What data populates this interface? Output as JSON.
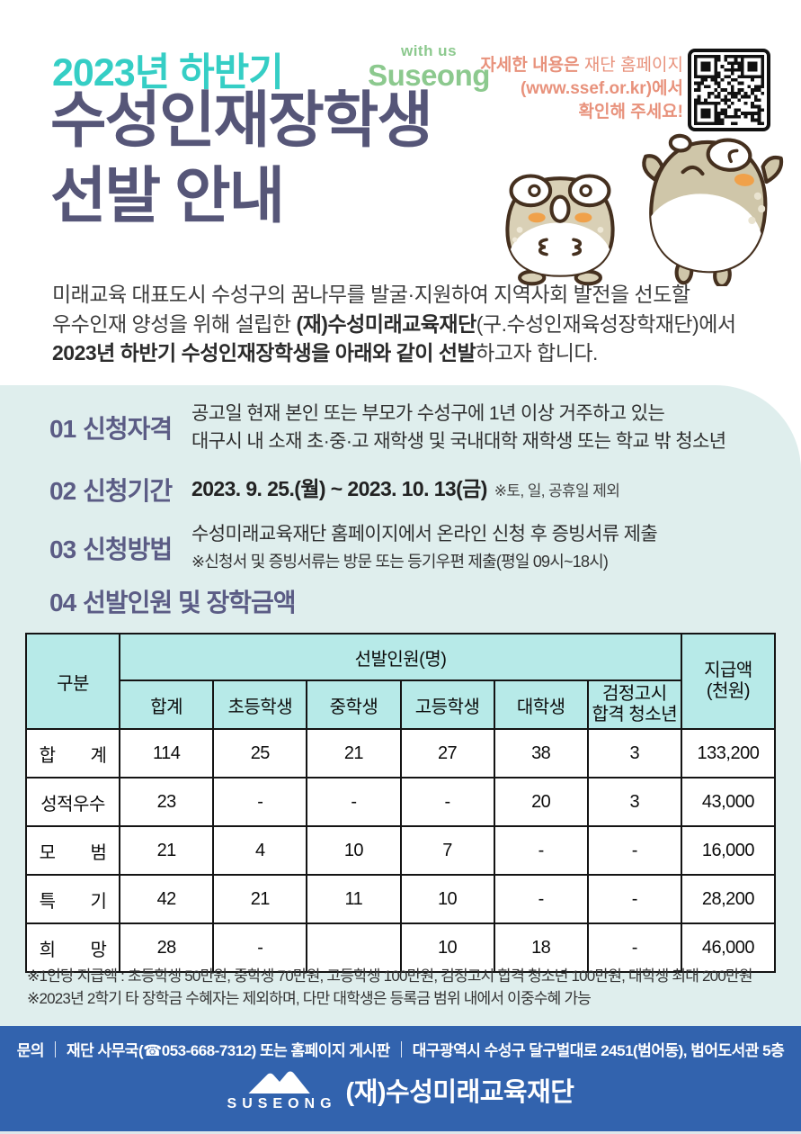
{
  "poster": {
    "subtitle": "2023년 하반기",
    "title_line1": "수성인재장학생",
    "title_line2": "선발 안내"
  },
  "logo": {
    "tagline": "with us",
    "name": "Suseong"
  },
  "qr_note": {
    "line1_strong": "자세한 내용은 ",
    "line1_light": "재단 홈페이지",
    "line2": "(www.ssef.or.kr)에서",
    "line3": "확인해 주세요!"
  },
  "intro": {
    "line1": "미래교육 대표도시 수성구의 꿈나무를 발굴·지원하여 지역사회 발전을 선도할",
    "line2_normal": "우수인재 양성을 위해 설립한 ",
    "line2_bold": "(재)수성미래교육재단",
    "line2_tail": "(구.수성인재육성장학재단)에서",
    "line3_bold": "2023년 하반기 수성인재장학생을 아래와 같이 선발",
    "line3_tail": "하고자 합니다."
  },
  "sections": {
    "s1": {
      "num": "01",
      "title": "신청자격",
      "line1": "공고일 현재 본인 또는 부모가 수성구에 1년 이상 거주하고 있는",
      "line2": "대구시 내 소재 초·중·고 재학생 및 국내대학 재학생 또는 학교 밖 청소년"
    },
    "s2": {
      "num": "02",
      "title": "신청기간",
      "period": "2023. 9. 25.(월) ~ 2023. 10. 13(금)",
      "note": "※토, 일, 공휴일 제외"
    },
    "s3": {
      "num": "03",
      "title": "신청방법",
      "line1": "수성미래교육재단 홈페이지에서 온라인 신청 후 증빙서류 제출",
      "note": "※신청서 및 증빙서류는 방문 또는 등기우편 제출(평일 09시~18시)"
    },
    "s4": {
      "num": "04",
      "title": "선발인원 및 장학금액"
    }
  },
  "table": {
    "corner_header": "구분",
    "group_header": "선발인원(명)",
    "amount_header_line1": "지급액",
    "amount_header_line2": "(천원)",
    "sub_headers": [
      "합계",
      "초등학생",
      "중학생",
      "고등학생",
      "대학생"
    ],
    "sub_header_last_line1": "검정고시",
    "sub_header_last_line2": "합격 청소년",
    "rows": [
      {
        "label": "합　　계",
        "values": [
          "114",
          "25",
          "21",
          "27",
          "38",
          "3",
          "133,200"
        ]
      },
      {
        "label": "성적우수",
        "values": [
          "23",
          "-",
          "-",
          "-",
          "20",
          "3",
          "43,000"
        ]
      },
      {
        "label": "모　　범",
        "values": [
          "21",
          "4",
          "10",
          "7",
          "-",
          "-",
          "16,000"
        ]
      },
      {
        "label": "특　　기",
        "values": [
          "42",
          "21",
          "11",
          "10",
          "-",
          "-",
          "28,200"
        ]
      },
      {
        "label": "희　　망",
        "values": [
          "28",
          "-",
          "",
          "10",
          "18",
          "-",
          "46,000"
        ]
      }
    ]
  },
  "footnotes": {
    "line1": "※1인당 지급액 : 초등학생 50만원, 중학생 70만원, 고등학생 100만원, 검정고시 합격 청소년 100만원, 대학생 최대 200만원",
    "line2": "※2023년 2학기 타 장학금 수혜자는 제외하며, 다만 대학생은 등록금 범위 내에서 이중수혜 가능"
  },
  "footer": {
    "contact_label": "문의",
    "contact_1": "재단 사무국(☎053-668-7312) 또는 홈페이지 게시판",
    "contact_2": "대구광역시 수성구 달구벌대로 2451(범어동), 범어도서관 5층",
    "logo_text": "SUSEONG",
    "org_name": "(재)수성미래교육재단"
  },
  "colors": {
    "accent_teal": "#35cec5",
    "title_navy": "#565678",
    "logo_green": "#8cc98e",
    "qr_note_salmon": "#e8927c",
    "panel_mint": "#dfeeed",
    "section_purple": "#5b5c85",
    "table_header_cyan": "#b7eae8",
    "footer_blue": "#3263ae"
  }
}
